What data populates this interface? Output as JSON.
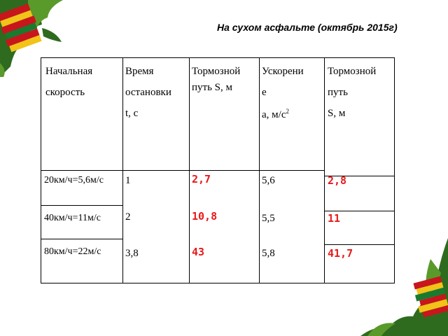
{
  "title": "На сухом асфальте (октябрь 2015г)",
  "headers": {
    "col1": [
      "Начальная",
      "скорость"
    ],
    "col2": [
      "Время",
      "остановки",
      "t, c"
    ],
    "col3": [
      "Тормозной",
      "путь S, м"
    ],
    "col4": [
      "Ускорени",
      "е",
      "а, м/с",
      "2"
    ],
    "col5": [
      "Тормозной",
      "путь",
      "S, м"
    ]
  },
  "rows": [
    {
      "speed": "20км/ч=5,6м/с",
      "time": "1",
      "dist": "2,7",
      "accel": "5,6",
      "dist2": "2,8"
    },
    {
      "speed": "40км/ч=11м/с",
      "time": "2",
      "dist": "10,8",
      "accel": "5,5",
      "dist2": "11"
    },
    {
      "speed": "80км/ч=22м/с",
      "time": "3,8",
      "dist": "43",
      "accel": "5,8",
      "dist2": "41,7"
    }
  ],
  "colors": {
    "highlight": "#e8191a",
    "border": "#000000"
  },
  "decorations": [
    "books-stack-top-left",
    "books-stack-bottom-right"
  ]
}
